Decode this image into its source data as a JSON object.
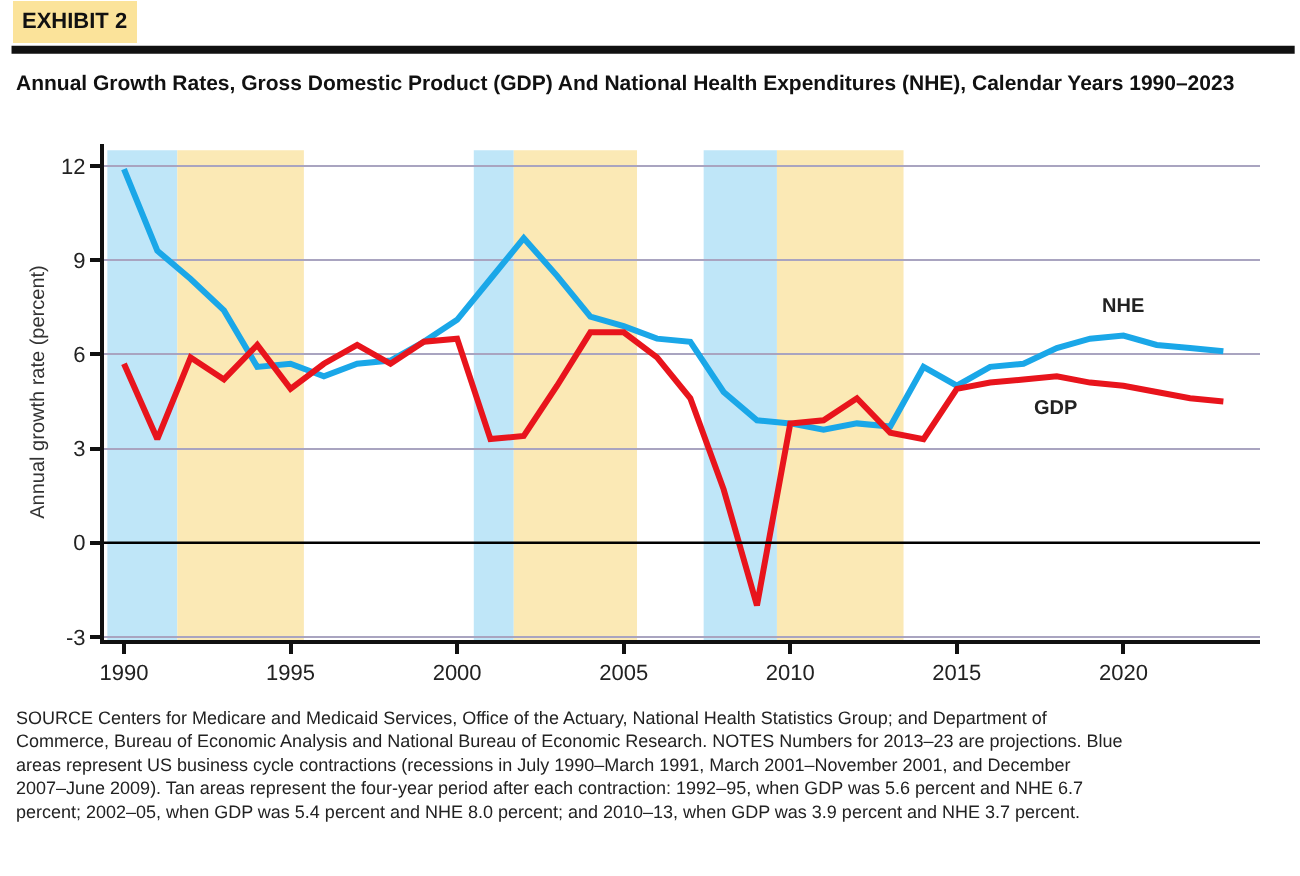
{
  "chart_data": {
    "type": "line",
    "title": "EXHIBIT 2",
    "subtitle": "Annual Growth Rates, Gross Domestic Product (GDP) And National Health Expenditures (NHE), Calendar Years 1990–2023",
    "ylabel": "Annual growth rate (percent)",
    "x": [
      1990,
      1991,
      1992,
      1993,
      1994,
      1995,
      1996,
      1997,
      1998,
      1999,
      2000,
      2001,
      2002,
      2003,
      2004,
      2005,
      2006,
      2007,
      2008,
      2009,
      2010,
      2011,
      2012,
      2013,
      2014,
      2015,
      2016,
      2017,
      2018,
      2019,
      2020,
      2021,
      2022,
      2023
    ],
    "series": [
      {
        "name": "NHE",
        "color": "#1aa7e8",
        "values": [
          11.9,
          9.3,
          8.4,
          7.4,
          5.6,
          5.7,
          5.3,
          5.7,
          5.8,
          6.4,
          7.1,
          8.4,
          9.7,
          8.5,
          7.2,
          6.9,
          6.5,
          6.4,
          4.8,
          3.9,
          3.8,
          3.6,
          3.8,
          3.7,
          5.6,
          5.0,
          5.6,
          5.7,
          6.2,
          6.5,
          6.6,
          6.3,
          6.2,
          6.1
        ]
      },
      {
        "name": "GDP",
        "color": "#e8141c",
        "values": [
          5.7,
          3.3,
          5.9,
          5.2,
          6.3,
          4.9,
          5.7,
          6.3,
          5.7,
          6.4,
          6.5,
          3.3,
          3.4,
          5.0,
          6.7,
          6.7,
          5.9,
          4.6,
          1.7,
          -2.0,
          3.8,
          3.9,
          4.6,
          3.5,
          3.3,
          4.9,
          5.1,
          5.2,
          5.3,
          5.1,
          5.0,
          4.8,
          4.6,
          4.5
        ]
      }
    ],
    "xlim": [
      1989.4,
      2024.1
    ],
    "ylim": [
      -3.1,
      12.7
    ],
    "xticks": [
      1990,
      1995,
      2000,
      2005,
      2010,
      2015,
      2020
    ],
    "yticks": [
      -3,
      0,
      3,
      6,
      9,
      12
    ],
    "ref_lines": [
      {
        "axis": "y",
        "value": 0,
        "label": null,
        "color": "#000000"
      }
    ],
    "bands": [
      {
        "axis": "x",
        "from": 1989.5,
        "to": 1991.6,
        "label": null,
        "color": "#bfe6f8"
      },
      {
        "axis": "x",
        "from": 1991.6,
        "to": 1995.4,
        "label": null,
        "color": "#fbe9b5"
      },
      {
        "axis": "x",
        "from": 2000.5,
        "to": 2001.7,
        "label": null,
        "color": "#bfe6f8"
      },
      {
        "axis": "x",
        "from": 2001.7,
        "to": 2005.4,
        "label": null,
        "color": "#fbe9b5"
      },
      {
        "axis": "x",
        "from": 2007.4,
        "to": 2009.6,
        "label": null,
        "color": "#bfe6f8"
      },
      {
        "axis": "x",
        "from": 2009.6,
        "to": 2013.4,
        "label": null,
        "color": "#fbe9b5"
      }
    ],
    "grid": "y",
    "legend": false,
    "marker": "none",
    "line_style": "solid",
    "annotations": [
      "SOURCE Centers for Medicare and Medicaid Services, Office of the Actuary, National Health Statistics Group; and Department of Commerce, Bureau of Economic Analysis and National Bureau of Economic Research. NOTES Numbers for 2013–23 are projections. Blue areas represent US business cycle contractions (recessions in July 1990–March 1991, March 2001–November 2001, and December 2007–June 2009). Tan areas represent the four-year period after each contraction: 1992–95, when GDP was 5.6 percent and NHE 6.7 percent; 2002–05, when GDP was 5.4 percent and NHE 8.0 percent; and 2010–13, when GDP was 3.9 percent and NHE 3.7 percent."
    ]
  }
}
